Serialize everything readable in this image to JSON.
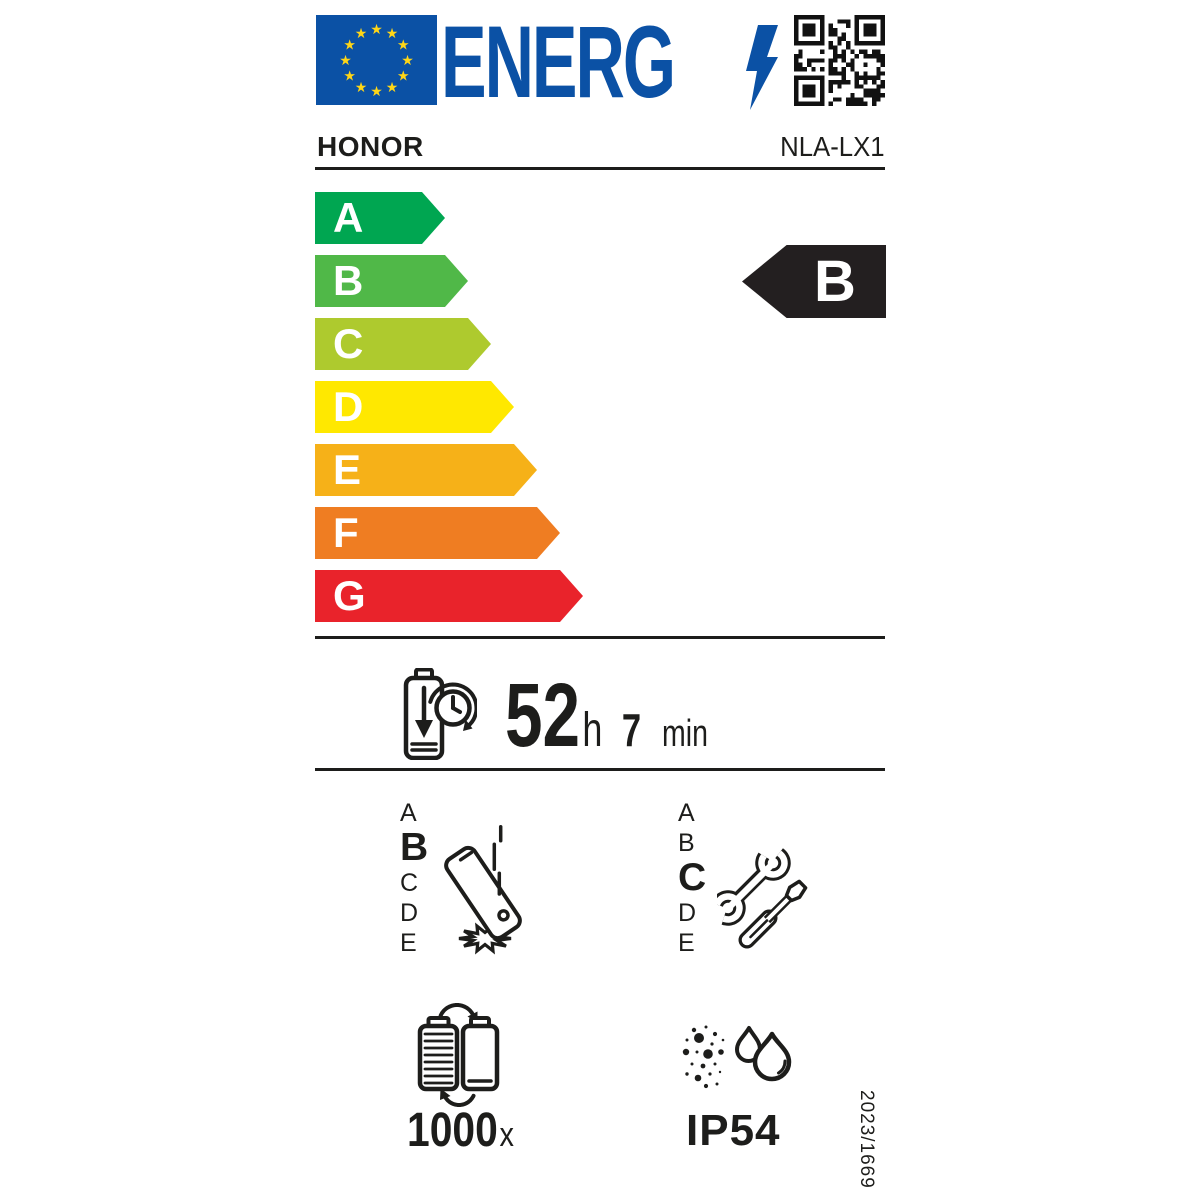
{
  "colors": {
    "brand_blue": "#0b51a5",
    "star_yellow": "#ffd617",
    "ink": "#1d1d1b",
    "indicator_black": "#231f20"
  },
  "header": {
    "logo_text": "ENERG",
    "icons": [
      "eu-flag",
      "lightning-bolt",
      "qr-code"
    ]
  },
  "supplier": {
    "name": "HONOR",
    "model": "NLA-LX1"
  },
  "energy_scale": {
    "classes": [
      {
        "label": "A",
        "color": "#00a651"
      },
      {
        "label": "B",
        "color": "#50b848"
      },
      {
        "label": "C",
        "color": "#aeca2e"
      },
      {
        "label": "D",
        "color": "#ffe800"
      },
      {
        "label": "E",
        "color": "#f6b118"
      },
      {
        "label": "F",
        "color": "#ef7d22"
      },
      {
        "label": "G",
        "color": "#e9232b"
      }
    ],
    "rating": {
      "label": "B",
      "color": "#231f20"
    }
  },
  "battery_endurance": {
    "icon": "battery-clock",
    "hours": "52",
    "hours_unit": "h",
    "minutes": "7",
    "minutes_unit": "min"
  },
  "drop_reliability": {
    "icon": "falling-phone",
    "scale": [
      "A",
      "B",
      "C",
      "D",
      "E"
    ],
    "rating": "B"
  },
  "repairability": {
    "icon": "repair-tools",
    "scale": [
      "A",
      "B",
      "C",
      "D",
      "E"
    ],
    "rating": "C"
  },
  "battery_cycles": {
    "icon": "battery-recycle",
    "value": "1000",
    "unit": "x"
  },
  "ingress_protection": {
    "icon": "dust-water",
    "rating": "IP54"
  },
  "regulation_number": "2023/1669"
}
